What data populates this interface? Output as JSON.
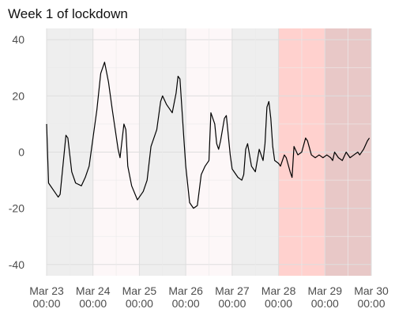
{
  "chart_data": {
    "type": "line",
    "title": "Week 1 of lockdown",
    "xlabel": "",
    "ylabel": "",
    "x_unit": "datetime",
    "xlim": [
      "2020-03-23 00:00",
      "2020-03-30 00:00"
    ],
    "ylim": [
      -44,
      44
    ],
    "grid": true,
    "legend": "none",
    "x_ticks": [
      {
        "label": "Mar 23\n00:00",
        "value": "2020-03-23 00:00"
      },
      {
        "label": "Mar 24\n00:00",
        "value": "2020-03-24 00:00"
      },
      {
        "label": "Mar 25\n00:00",
        "value": "2020-03-25 00:00"
      },
      {
        "label": "Mar 26\n00:00",
        "value": "2020-03-26 00:00"
      },
      {
        "label": "Mar 27\n00:00",
        "value": "2020-03-27 00:00"
      },
      {
        "label": "Mar 28\n00:00",
        "value": "2020-03-28 00:00"
      },
      {
        "label": "Mar 29\n00:00",
        "value": "2020-03-29 00:00"
      },
      {
        "label": "Mar 30\n00:00",
        "value": "2020-03-30 00:00"
      }
    ],
    "y_ticks": [
      {
        "label": "40",
        "value": 40
      },
      {
        "label": "20",
        "value": 20
      },
      {
        "label": "0",
        "value": 0
      },
      {
        "label": "-20",
        "value": -20
      },
      {
        "label": "-40",
        "value": -40
      }
    ],
    "shaded_days": [
      {
        "start": "2020-03-23 00:00",
        "end": "2020-03-24 00:00",
        "color": "#d9d9d9",
        "opacity": 0.45
      },
      {
        "start": "2020-03-24 00:00",
        "end": "2020-03-25 00:00",
        "color": "#fbeef0",
        "opacity": 0.45
      },
      {
        "start": "2020-03-25 00:00",
        "end": "2020-03-26 00:00",
        "color": "#d9d9d9",
        "opacity": 0.45
      },
      {
        "start": "2020-03-26 00:00",
        "end": "2020-03-27 00:00",
        "color": "#fbeef0",
        "opacity": 0.45
      },
      {
        "start": "2020-03-27 00:00",
        "end": "2020-03-28 00:00",
        "color": "#d9d9d9",
        "opacity": 0.45
      },
      {
        "start": "2020-03-28 00:00",
        "end": "2020-03-29 00:00",
        "color": "#ff9a93",
        "opacity": 0.45
      },
      {
        "start": "2020-03-29 00:00",
        "end": "2020-03-30 00:00",
        "color": "#cc8582",
        "opacity": 0.45
      }
    ],
    "series": [
      {
        "line_color": "#000000",
        "points": [
          {
            "x": "2020-03-23 00:00",
            "y": 10
          },
          {
            "x": "2020-03-23 01:00",
            "y": -11
          },
          {
            "x": "2020-03-23 04:00",
            "y": -14
          },
          {
            "x": "2020-03-23 06:00",
            "y": -16
          },
          {
            "x": "2020-03-23 07:00",
            "y": -15
          },
          {
            "x": "2020-03-23 10:00",
            "y": 6
          },
          {
            "x": "2020-03-23 11:00",
            "y": 5
          },
          {
            "x": "2020-03-23 13:00",
            "y": -7
          },
          {
            "x": "2020-03-23 15:00",
            "y": -11
          },
          {
            "x": "2020-03-23 18:00",
            "y": -12
          },
          {
            "x": "2020-03-23 20:00",
            "y": -9
          },
          {
            "x": "2020-03-23 22:00",
            "y": -5
          },
          {
            "x": "2020-03-24 00:00",
            "y": 5
          },
          {
            "x": "2020-03-24 02:00",
            "y": 15
          },
          {
            "x": "2020-03-24 04:00",
            "y": 28
          },
          {
            "x": "2020-03-24 06:00",
            "y": 32
          },
          {
            "x": "2020-03-24 08:00",
            "y": 25
          },
          {
            "x": "2020-03-24 10:00",
            "y": 15
          },
          {
            "x": "2020-03-24 13:00",
            "y": 1
          },
          {
            "x": "2020-03-24 14:00",
            "y": -2
          },
          {
            "x": "2020-03-24 15:00",
            "y": 4
          },
          {
            "x": "2020-03-24 16:00",
            "y": 10
          },
          {
            "x": "2020-03-24 17:00",
            "y": 8
          },
          {
            "x": "2020-03-24 18:00",
            "y": -5
          },
          {
            "x": "2020-03-24 20:00",
            "y": -12
          },
          {
            "x": "2020-03-24 23:00",
            "y": -17
          },
          {
            "x": "2020-03-25 02:00",
            "y": -14
          },
          {
            "x": "2020-03-25 04:00",
            "y": -10
          },
          {
            "x": "2020-03-25 06:00",
            "y": 2
          },
          {
            "x": "2020-03-25 09:00",
            "y": 8
          },
          {
            "x": "2020-03-25 11:00",
            "y": 18
          },
          {
            "x": "2020-03-25 12:00",
            "y": 20
          },
          {
            "x": "2020-03-25 14:00",
            "y": 17
          },
          {
            "x": "2020-03-25 17:00",
            "y": 14
          },
          {
            "x": "2020-03-25 19:00",
            "y": 21
          },
          {
            "x": "2020-03-25 20:00",
            "y": 27
          },
          {
            "x": "2020-03-25 21:00",
            "y": 26
          },
          {
            "x": "2020-03-25 23:00",
            "y": 5
          },
          {
            "x": "2020-03-26 00:00",
            "y": -5
          },
          {
            "x": "2020-03-26 02:00",
            "y": -18
          },
          {
            "x": "2020-03-26 04:00",
            "y": -20
          },
          {
            "x": "2020-03-26 06:00",
            "y": -19
          },
          {
            "x": "2020-03-26 08:00",
            "y": -8
          },
          {
            "x": "2020-03-26 10:00",
            "y": -5
          },
          {
            "x": "2020-03-26 12:00",
            "y": -3
          },
          {
            "x": "2020-03-26 13:00",
            "y": 14
          },
          {
            "x": "2020-03-26 15:00",
            "y": 10
          },
          {
            "x": "2020-03-26 16:00",
            "y": 3
          },
          {
            "x": "2020-03-26 17:00",
            "y": 1
          },
          {
            "x": "2020-03-26 18:00",
            "y": 4
          },
          {
            "x": "2020-03-26 20:00",
            "y": 12
          },
          {
            "x": "2020-03-26 21:00",
            "y": 13
          },
          {
            "x": "2020-03-26 23:00",
            "y": -1
          },
          {
            "x": "2020-03-27 00:00",
            "y": -6
          },
          {
            "x": "2020-03-27 01:00",
            "y": -7
          },
          {
            "x": "2020-03-27 03:00",
            "y": -9
          },
          {
            "x": "2020-03-27 05:00",
            "y": -10
          },
          {
            "x": "2020-03-27 06:00",
            "y": -8
          },
          {
            "x": "2020-03-27 07:00",
            "y": 1
          },
          {
            "x": "2020-03-27 08:00",
            "y": 3
          },
          {
            "x": "2020-03-27 10:00",
            "y": -5
          },
          {
            "x": "2020-03-27 12:00",
            "y": -7
          },
          {
            "x": "2020-03-27 14:00",
            "y": 1
          },
          {
            "x": "2020-03-27 16:00",
            "y": -3
          },
          {
            "x": "2020-03-27 17:00",
            "y": 3
          },
          {
            "x": "2020-03-27 18:00",
            "y": 16
          },
          {
            "x": "2020-03-27 19:00",
            "y": 18
          },
          {
            "x": "2020-03-27 20:00",
            "y": 12
          },
          {
            "x": "2020-03-27 21:00",
            "y": 2
          },
          {
            "x": "2020-03-27 22:00",
            "y": -3
          },
          {
            "x": "2020-03-28 00:00",
            "y": -4
          },
          {
            "x": "2020-03-28 01:00",
            "y": -5
          },
          {
            "x": "2020-03-28 02:00",
            "y": -3
          },
          {
            "x": "2020-03-28 03:00",
            "y": -1
          },
          {
            "x": "2020-03-28 04:00",
            "y": -2
          },
          {
            "x": "2020-03-28 06:00",
            "y": -7
          },
          {
            "x": "2020-03-28 07:00",
            "y": -9
          },
          {
            "x": "2020-03-28 08:00",
            "y": 2
          },
          {
            "x": "2020-03-28 10:00",
            "y": -1
          },
          {
            "x": "2020-03-28 12:00",
            "y": 0
          },
          {
            "x": "2020-03-28 14:00",
            "y": 5
          },
          {
            "x": "2020-03-28 15:00",
            "y": 4
          },
          {
            "x": "2020-03-28 17:00",
            "y": -1
          },
          {
            "x": "2020-03-28 19:00",
            "y": -2
          },
          {
            "x": "2020-03-28 21:00",
            "y": -1
          },
          {
            "x": "2020-03-28 23:00",
            "y": -2
          },
          {
            "x": "2020-03-29 01:00",
            "y": -1
          },
          {
            "x": "2020-03-29 03:00",
            "y": -2
          },
          {
            "x": "2020-03-29 04:00",
            "y": -3
          },
          {
            "x": "2020-03-29 05:00",
            "y": 0
          },
          {
            "x": "2020-03-29 07:00",
            "y": -2
          },
          {
            "x": "2020-03-29 09:00",
            "y": -3
          },
          {
            "x": "2020-03-29 11:00",
            "y": 0
          },
          {
            "x": "2020-03-29 13:00",
            "y": -2
          },
          {
            "x": "2020-03-29 15:00",
            "y": -1
          },
          {
            "x": "2020-03-29 17:00",
            "y": 0
          },
          {
            "x": "2020-03-29 18:00",
            "y": -1
          },
          {
            "x": "2020-03-29 20:00",
            "y": 1
          },
          {
            "x": "2020-03-29 22:00",
            "y": 4
          },
          {
            "x": "2020-03-29 23:00",
            "y": 5
          }
        ]
      }
    ]
  }
}
